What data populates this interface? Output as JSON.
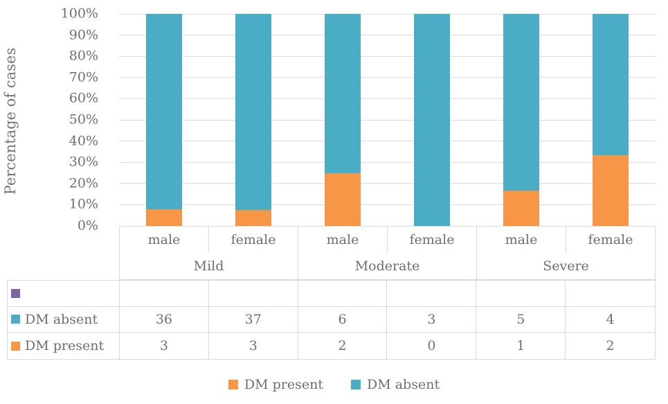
{
  "y_axis": {
    "title": "Percentage of cases",
    "tick_labels": [
      "100%",
      "90%",
      "80%",
      "70%",
      "60%",
      "50%",
      "40%",
      "30%",
      "20%",
      "10%",
      "0%"
    ]
  },
  "chart_data": {
    "type": "bar",
    "subtype": "100-percent-stacked-column",
    "title": "",
    "xlabel": "",
    "ylabel": "Percentage of cases",
    "ylim": [
      0,
      100
    ],
    "y_tick_step_percent": 10,
    "grid": true,
    "legend_position": "bottom",
    "group_labels": [
      "Mild",
      "Moderate",
      "Severe"
    ],
    "categories": [
      "male",
      "female",
      "male",
      "female",
      "male",
      "female"
    ],
    "series": [
      {
        "name": "DM present",
        "color": "#F79646",
        "values": [
          3,
          3,
          2,
          0,
          1,
          2
        ]
      },
      {
        "name": "DM absent",
        "color": "#4BACC6",
        "values": [
          36,
          37,
          6,
          3,
          5,
          4
        ]
      }
    ]
  },
  "data_table": {
    "rows": [
      {
        "key_color": "#8064A2",
        "label": "",
        "values": [
          "",
          "",
          "",
          "",
          "",
          ""
        ]
      },
      {
        "key_color": "#4BACC6",
        "label": "DM absent",
        "values": [
          "36",
          "37",
          "6",
          "3",
          "5",
          "4"
        ]
      },
      {
        "key_color": "#F79646",
        "label": "DM present",
        "values": [
          "3",
          "3",
          "2",
          "0",
          "1",
          "2"
        ]
      }
    ]
  },
  "legend": {
    "items": [
      {
        "label": "DM present",
        "color": "#F79646"
      },
      {
        "label": "DM absent",
        "color": "#4BACC6"
      }
    ]
  },
  "colors": {
    "dm_present": "#F79646",
    "dm_absent": "#4BACC6",
    "unnamed_series_key": "#8064A2",
    "text": "#6E6E6E",
    "gridline": "#DCDCDC",
    "border": "#D9D9D9"
  }
}
